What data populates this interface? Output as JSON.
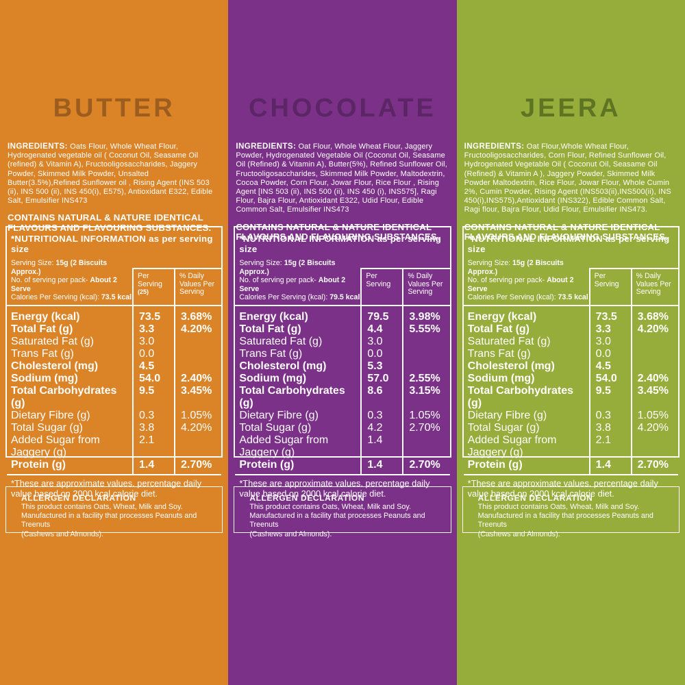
{
  "shared": {
    "nutrition_title": "*NUTRITIONAL INFORMATION as per serving size",
    "serving_size_label": "Serving Size: ",
    "servings_label": "No. of serving per pack- ",
    "servings_value": "About 2 Serve",
    "calories_label": "Calories Per Serving (kcal): ",
    "col_per_serving": "Per Serving",
    "col_daily_values": "% Daily Values Per Serving",
    "footnote": "*These are approximate values. percentage daily value based on 2000 kcal calorie diet.",
    "allergen_title": "ALLERGEN DECLARATION",
    "allergen_text": "This product contains Oats, Wheat, Milk and Soy.\nManufactured in a facility that processes Peanuts and Treenuts\n(Cashews and Almonds)."
  },
  "panels": [
    {
      "title": "BUTTER",
      "bg": "#DB8327",
      "title_color": "#9C5D1E",
      "ingredients_label": "INGREDIENTS:",
      "ingredients": " Oats Flour, Whole Wheat Flour,  Hydrogenated vegetable oil ( Coconut Oil, Seasame Oil (refined) & Vitamin A), Fructooligosaccharides,  Jaggery Powder, Skimmed Milk Powder, Unsalted  Butter(3.5%),Refined Sunflower oil , Rising Agent  (INS 503 (ii), INS 500 (ii), INS 450(i), E575), Antioxidant E322, Edible Salt, Emulsifier INS473",
      "contains": "CONTAINS NATURAL & NATURE IDENTICAL FLAVOURS AND FLAVOURING SUBSTANCES.",
      "serving_size_value": "15g (2 Biscuits Approx.)",
      "calories_value": "73.5 kcal",
      "per_serving_sub": "(25)",
      "rows": [
        {
          "label": "Energy (kcal)",
          "value": "73.5",
          "dv": "3.68%",
          "bold": true
        },
        {
          "label": "Total Fat (g)",
          "value": "3.3",
          "dv": "4.20%",
          "bold": true
        },
        {
          "label": "Saturated Fat (g)",
          "value": "3.0",
          "dv": "",
          "bold": false
        },
        {
          "label": "Trans Fat (g)",
          "value": "0.0",
          "dv": "",
          "bold": false
        },
        {
          "label": "Cholesterol (mg)",
          "value": "4.5",
          "dv": "",
          "bold": true
        },
        {
          "label": "Sodium (mg)",
          "value": "54.0",
          "dv": "2.40%",
          "bold": true
        },
        {
          "label": "Total Carbohydrates (g)",
          "value": "9.5",
          "dv": "3.45%",
          "bold": true
        },
        {
          "label": "Dietary Fibre (g)",
          "value": "0.3",
          "dv": "1.05%",
          "bold": false
        },
        {
          "label": "Total Sugar (g)",
          "value": "3.8",
          "dv": "4.20%",
          "bold": false
        },
        {
          "label": "Added Sugar from Jaggery (g)",
          "value": "2.1",
          "dv": "",
          "bold": false
        },
        {
          "label": "Protein (g)",
          "value": "1.4",
          "dv": "2.70%",
          "bold": true
        }
      ]
    },
    {
      "title": "CHOCOLATE",
      "bg": "#7C3189",
      "title_color": "#5C2566",
      "ingredients_label": "INGREDIENTS:",
      "ingredients": " Oat Flour, Whole Wheat Flour, Jaggery Powder, Hydrogenated Vegetable Oil (Coconut Oil, Seasame Oil (Refined) & Vitamin A), Butter(5%), Refined Sunflower Oil, Fructooligosaccharides, Skimmed Milk Powder, Maltodextrin, Cocoa Powder, Corn Flour, Jowar Flour, Rice Flour , Rising Agent [INS 503 (ii), INS 500 (ii), INS 450 (i), INS575], Ragi Flour, Bajra Flour, Antioxidant E322, Udid Flour, Edible Common Salt, Emulsifier INS473",
      "contains": "CONTAINS NATURAL & NATURE IDENTICAL FLAVOURS AND FLAVOURING SUBSTANCES.",
      "serving_size_value": "15g (2 Biscuits Approx.)",
      "calories_value": "79.5 kcal",
      "per_serving_sub": "",
      "rows": [
        {
          "label": "Energy (kcal)",
          "value": "79.5",
          "dv": "3.98%",
          "bold": true
        },
        {
          "label": "Total Fat (g)",
          "value": "4.4",
          "dv": "5.55%",
          "bold": true
        },
        {
          "label": "Saturated Fat (g)",
          "value": "3.0",
          "dv": "",
          "bold": false
        },
        {
          "label": "Trans Fat (g)",
          "value": "0.0",
          "dv": "",
          "bold": false
        },
        {
          "label": "Cholesterol (mg)",
          "value": "5.3",
          "dv": "",
          "bold": true
        },
        {
          "label": "Sodium (mg)",
          "value": "57.0",
          "dv": "2.55%",
          "bold": true
        },
        {
          "label": "Total Carbohydrates (g)",
          "value": "8.6",
          "dv": "3.15%",
          "bold": true
        },
        {
          "label": "Dietary Fibre (g)",
          "value": "0.3",
          "dv": "1.05%",
          "bold": false
        },
        {
          "label": "Total Sugar (g)",
          "value": "4.2",
          "dv": "2.70%",
          "bold": false
        },
        {
          "label": "Added Sugar from Jaggery (g)",
          "value": "1.4",
          "dv": "",
          "bold": false
        },
        {
          "label": "Protein (g)",
          "value": "1.4",
          "dv": "2.70%",
          "bold": true
        }
      ]
    },
    {
      "title": "JEERA",
      "bg": "#96AC3B",
      "title_color": "#5F7423",
      "ingredients_label": "INGREDIENTS:",
      "ingredients": " Oat Flour,Whole Wheat Flour, Fructooligosaccharides, Corn Flour, Refined Sunflower Oil, Hydrogenated Vegetable Oil ( Coconut Oil, Seasame Oil (Refined) & Vitamin A ), Jaggery Powder, Skimmed Milk Powder Maltodextrin, Rice Flour, Jowar Flour, Whole Cumin 2%, Cumin Powder, Rising Agent (INS503(ii),INS500(ii), INS 450(i),INS575),Antioxidant  (INS322), Edible Common Salt, Ragi flour, Bajra Flour, Udid Flour, Emulsifier INS473.",
      "contains": "CONTAINS NATURAL & NATURE IDENTICAL FLAVOURS AND FLAVOURING SUBSTANCES.",
      "serving_size_value": "15g (2 Biscuits Approx.)",
      "calories_value": "73.5 kcal",
      "per_serving_sub": "",
      "rows": [
        {
          "label": "Energy (kcal)",
          "value": "73.5",
          "dv": "3.68%",
          "bold": true
        },
        {
          "label": "Total Fat (g)",
          "value": "3.3",
          "dv": "4.20%",
          "bold": true
        },
        {
          "label": "Saturated Fat (g)",
          "value": "3.0",
          "dv": "",
          "bold": false
        },
        {
          "label": "Trans Fat (g)",
          "value": "0.0",
          "dv": "",
          "bold": false
        },
        {
          "label": "Cholesterol (mg)",
          "value": "4.5",
          "dv": "",
          "bold": true
        },
        {
          "label": "Sodium (mg)",
          "value": "54.0",
          "dv": "2.40%",
          "bold": true
        },
        {
          "label": "Total Carbohydrates (g)",
          "value": "9.5",
          "dv": "3.45%",
          "bold": true
        },
        {
          "label": "Dietary Fibre (g)",
          "value": "0.3",
          "dv": "1.05%",
          "bold": false
        },
        {
          "label": "Total Sugar (g)",
          "value": "3.8",
          "dv": "4.20%",
          "bold": false
        },
        {
          "label": "Added Sugar from Jaggery (g)",
          "value": "2.1",
          "dv": "",
          "bold": false
        },
        {
          "label": "Protein (g)",
          "value": "1.4",
          "dv": "2.70%",
          "bold": true
        }
      ]
    }
  ]
}
